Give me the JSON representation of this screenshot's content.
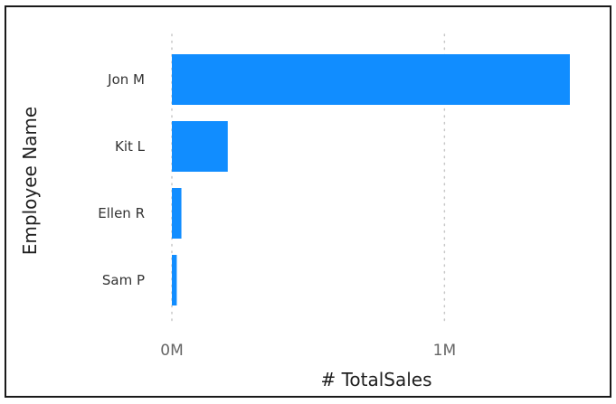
{
  "chart_data": {
    "type": "bar",
    "orientation": "horizontal",
    "categories": [
      "Jon M",
      "Kit L",
      "Ellen R",
      "Sam P"
    ],
    "values": [
      1460000,
      205000,
      35000,
      18000
    ],
    "xlabel": "# TotalSales",
    "ylabel": "Employee Name",
    "xlim": [
      0,
      1460000
    ],
    "x_ticks": [
      {
        "value": 0,
        "label": "0M"
      },
      {
        "value": 1000000,
        "label": "1M"
      }
    ],
    "grid": "vertical dotted",
    "bar_color": "#118DFF",
    "grid_color": "#C8C8C8"
  }
}
